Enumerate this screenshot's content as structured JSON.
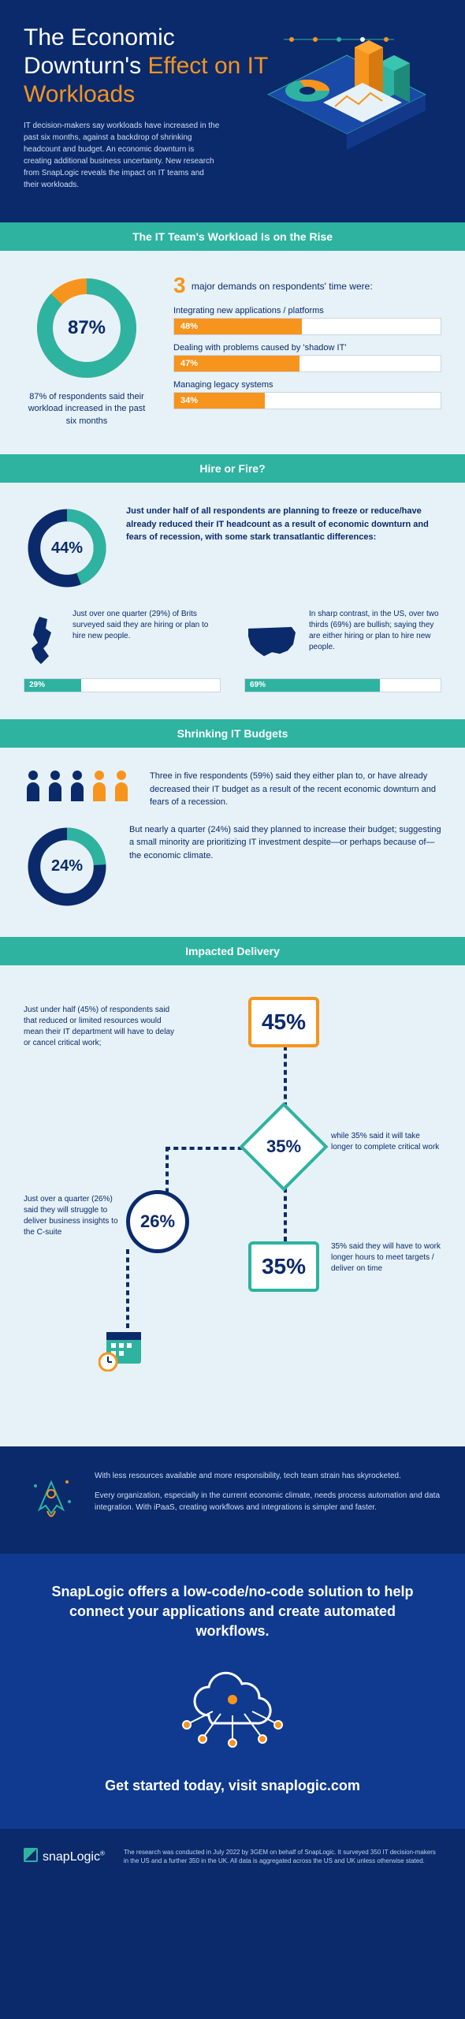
{
  "colors": {
    "navy": "#0a2a6c",
    "blue": "#0f3a8f",
    "teal": "#2eb3a0",
    "orange": "#f7941d",
    "light": "#e6f2f7",
    "white": "#ffffff"
  },
  "header": {
    "title_pre": "The Economic Downturn's ",
    "title_accent": "Effect on IT Workloads",
    "intro": "IT decision-makers say workloads have increased in the past six months, against a backdrop of shrinking headcount and budget. An economic downturn is creating additional business uncertainty. New research from SnapLogic reveals the impact on IT teams and their workloads."
  },
  "section1": {
    "title": "The IT Team's Workload Is on the Rise",
    "donut": {
      "percent": 87,
      "label": "87%",
      "color": "#2eb3a0",
      "track": "#f7941d"
    },
    "caption": "87% of respondents said their workload increased in the past six months",
    "demands_count": "3",
    "demands_title": " major demands on respondents' time were:",
    "bars": [
      {
        "label": "Integrating new applications / platforms",
        "value": 48,
        "text": "48%"
      },
      {
        "label": "Dealing with problems caused by 'shadow IT'",
        "value": 47,
        "text": "47%"
      },
      {
        "label": "Managing legacy systems",
        "value": 34,
        "text": "34%"
      }
    ]
  },
  "section2": {
    "title": "Hire or Fire?",
    "donut": {
      "percent": 44,
      "label": "44%",
      "color": "#2eb3a0",
      "track": "#0a2a6c"
    },
    "text": "Just under half of all respondents are planning to freeze or reduce/have already reduced their IT headcount as a result of economic downturn and fears of recession, with some stark transatlantic differences:",
    "uk": {
      "text": "Just over one quarter (29%) of Brits surveyed said they are hiring or plan to hire new people.",
      "value": 29,
      "label": "29%"
    },
    "us": {
      "text": "In sharp contrast, in the US, over two thirds (69%) are bullish; saying they are either hiring or plan to hire new people.",
      "value": 69,
      "label": "69%"
    }
  },
  "section3": {
    "title": "Shrinking IT Budgets",
    "people": {
      "navy_count": 3,
      "orange_count": 2
    },
    "text1": "Three in five respondents (59%) said they either plan to, or have already decreased their IT budget as a result of the recent economic downturn and fears of a recession.",
    "donut": {
      "percent": 24,
      "label": "24%",
      "color": "#2eb3a0",
      "track": "#0a2a6c"
    },
    "text2": "But nearly a quarter (24%) said they planned to increase their budget; suggesting a small minority are prioritizing IT investment despite—or perhaps because of—the economic climate."
  },
  "section4": {
    "title": "Impacted Delivery",
    "stats": [
      {
        "value": "45%",
        "color": "#f7941d",
        "text": "Just under half (45%) of respondents said that reduced or limited resources would mean their IT department will have to delay or cancel critical work;"
      },
      {
        "value": "35%",
        "color": "#2eb3a0",
        "shape": "diamond",
        "text": "while 35% said it will take longer to complete critical work"
      },
      {
        "value": "26%",
        "color": "#0a2a6c",
        "shape": "circle",
        "text": "Just over a quarter (26%) said they will struggle to deliver business insights to the C-suite"
      },
      {
        "value": "35%",
        "color": "#2eb3a0",
        "text": "35% said they will have to work longer hours to meet targets / deliver on time"
      }
    ]
  },
  "rocket": {
    "p1": "With less resources available and more responsibility, tech team strain has skyrocketed.",
    "p2": "Every organization, especially in the current economic climate, needs process automation and data integration. With iPaaS, creating workflows and integrations is simpler and faster."
  },
  "cta": {
    "headline": "SnapLogic offers a low-code/no-code solution to help connect your applications and create automated workflows.",
    "action": "Get started today, visit snaplogic.com"
  },
  "footer": {
    "brand": "snapLogic",
    "disclaimer": "The research was conducted in July 2022 by 3GEM on behalf of SnapLogic. It surveyed 350 IT decision-makers in the US and a further 350 in the UK. All data is aggregated across the US and UK unless otherwise stated."
  }
}
